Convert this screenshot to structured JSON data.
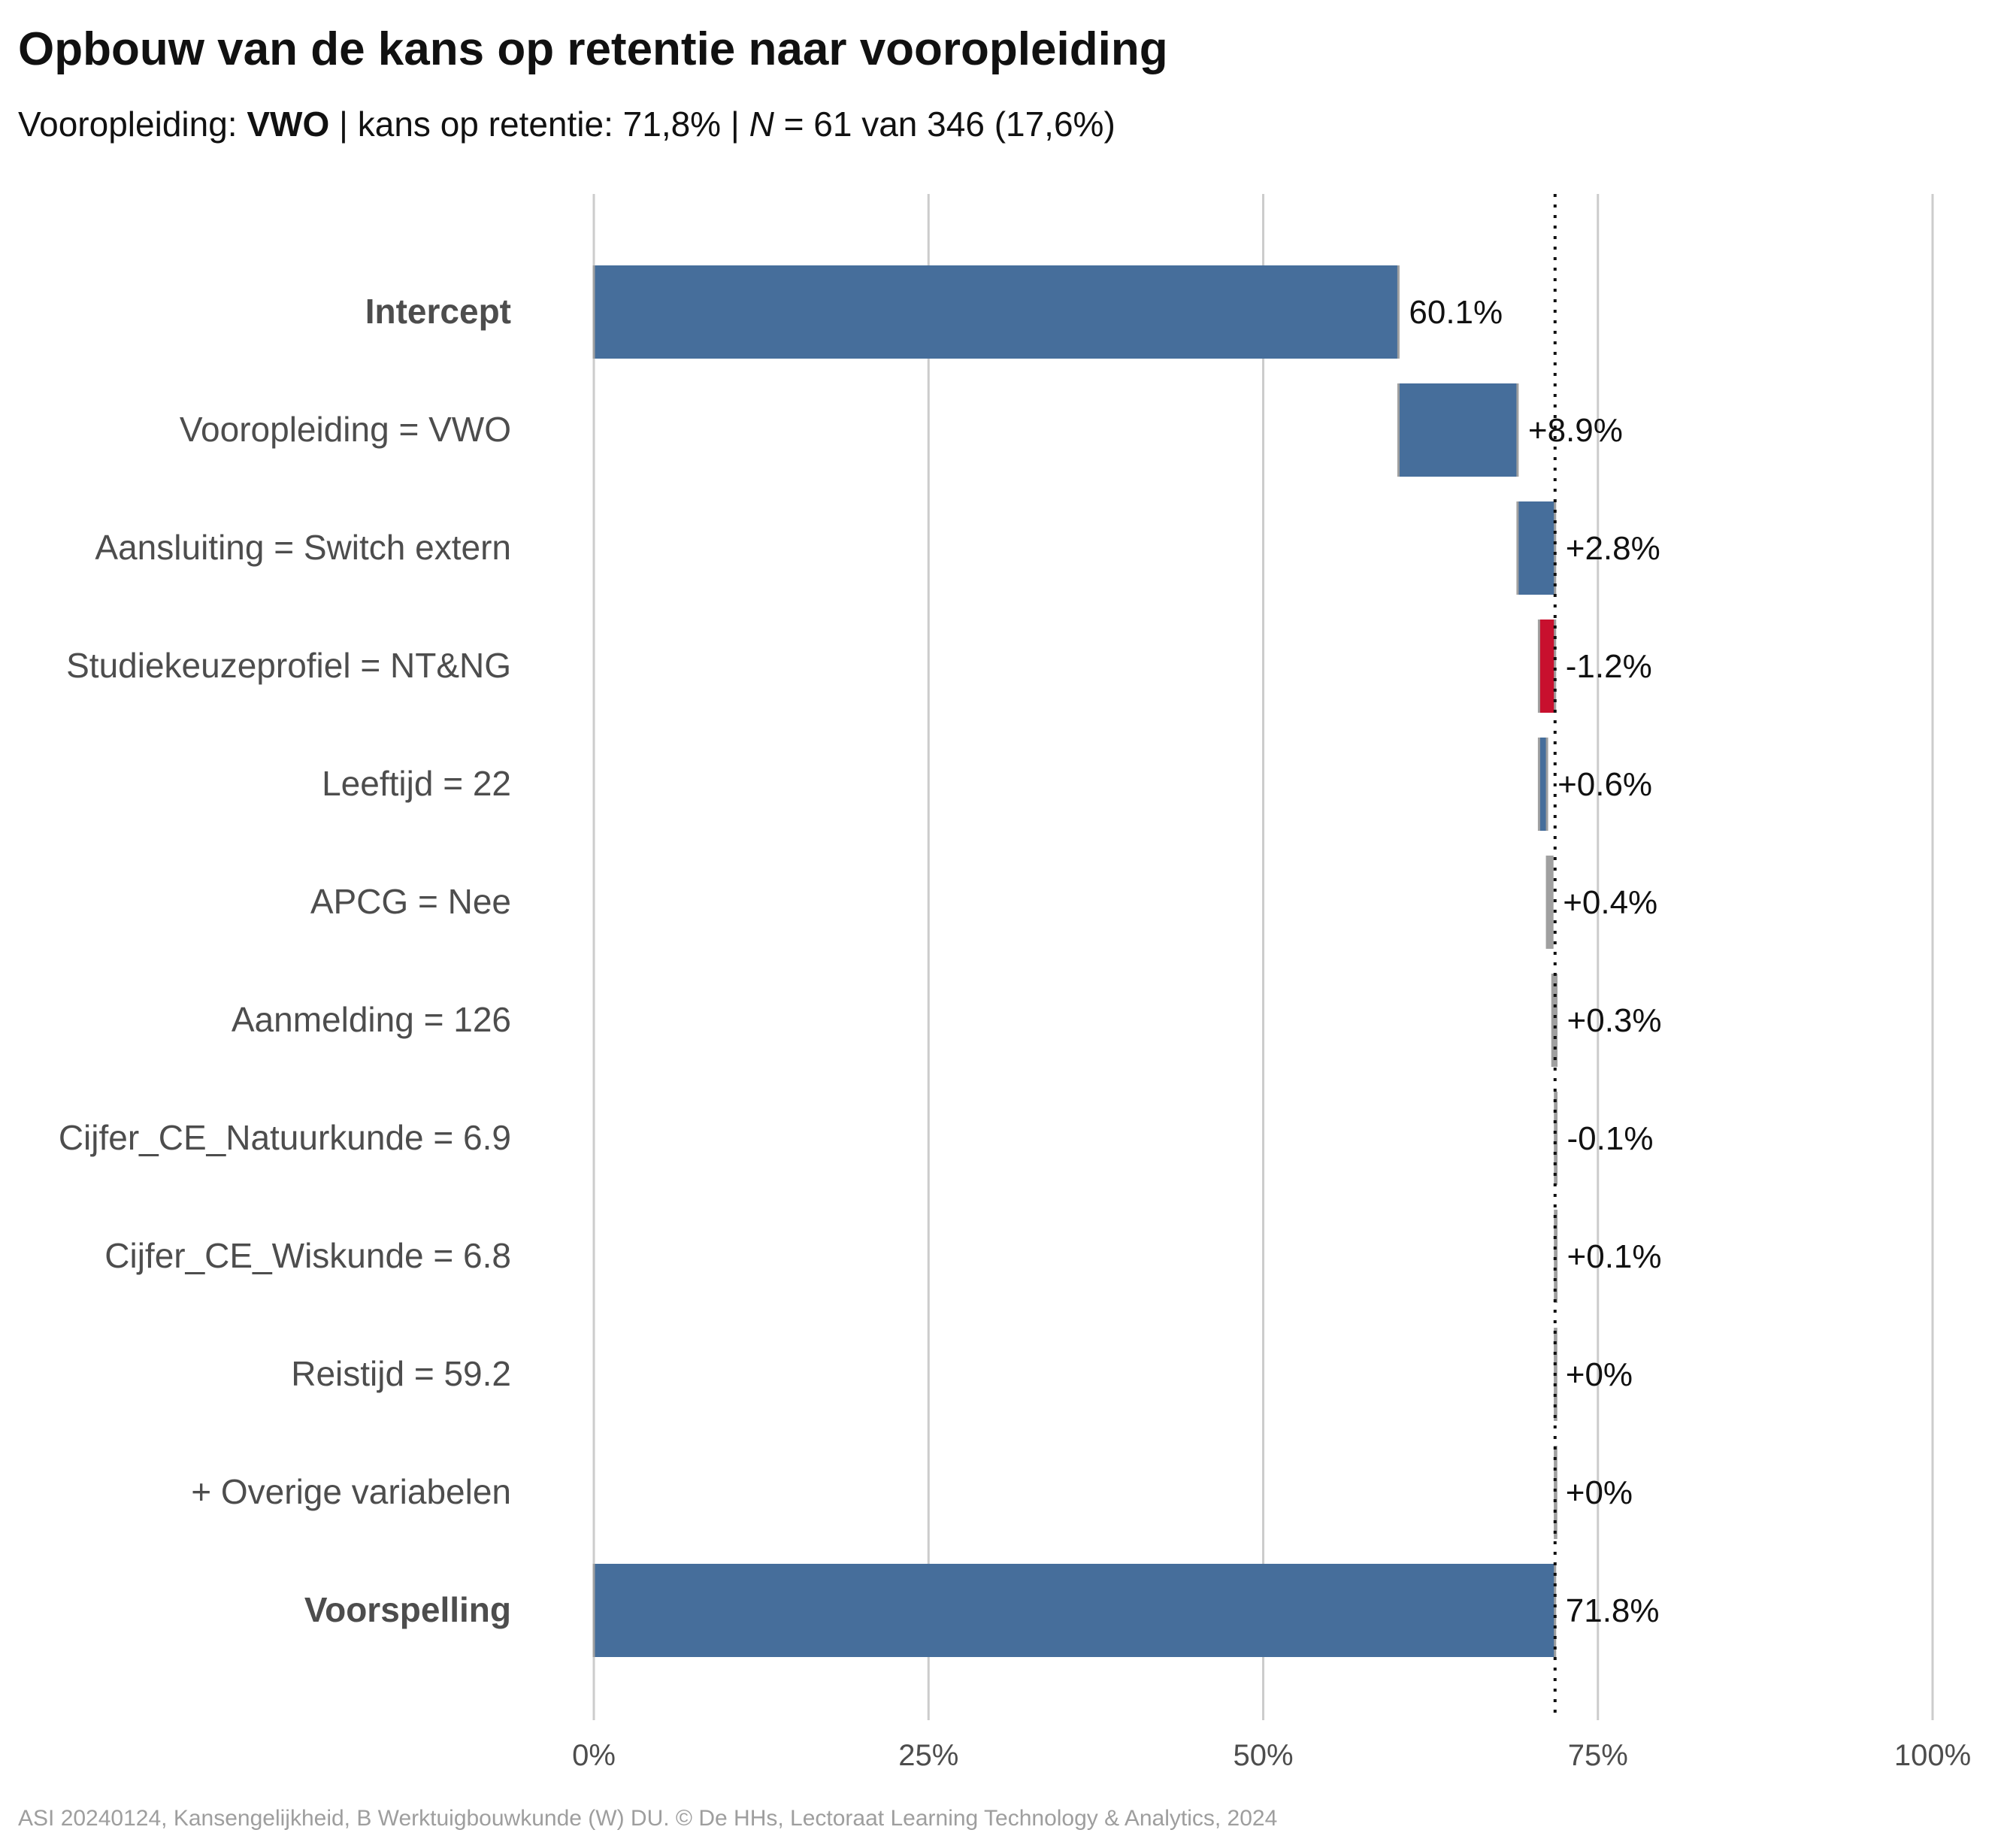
{
  "title": "Opbouw van de kans op retentie naar vooropleiding",
  "subtitle": {
    "prefix": "Vooropleiding: ",
    "group": "VWO",
    "sep1": " | kans op retentie: ",
    "kans": "71,8%",
    "sep2": " | ",
    "n_symbol": "N",
    "n_text": " = 61 van 346 (17,6%)"
  },
  "caption": "ASI 20240124, Kansengelijkheid, B Werktuigbouwkunde (W) DU. © De HHs, Lectoraat Learning Technology & Analytics, 2024",
  "colors": {
    "positive": "#466e9b",
    "negative": "#c8102e",
    "neutral": "#a0a0a0",
    "grid": "#cccccc",
    "label": "#4d4d4d",
    "value_text": "#111111"
  },
  "chart_data": {
    "type": "bar",
    "orientation": "horizontal-waterfall",
    "xlim": [
      0,
      100
    ],
    "x_ticks": [
      0,
      25,
      50,
      75,
      100
    ],
    "x_tick_labels": [
      "0%",
      "25%",
      "50%",
      "75%",
      "100%"
    ],
    "reference_line": 71.8,
    "grid": true,
    "rows": [
      {
        "label": "Intercept",
        "start": 0,
        "end": 60.1,
        "value_label": "60.1%",
        "kind": "total",
        "bold": true
      },
      {
        "label": "Vooropleiding = VWO",
        "start": 60.1,
        "end": 69.0,
        "value_label": "+8.9%",
        "kind": "positive"
      },
      {
        "label": "Aansluiting = Switch extern",
        "start": 69.0,
        "end": 71.8,
        "value_label": "+2.8%",
        "kind": "positive"
      },
      {
        "label": "Studiekeuzeprofiel = NT&NG",
        "start": 71.8,
        "end": 70.6,
        "value_label": "-1.2%",
        "kind": "negative"
      },
      {
        "label": "Leeftijd = 22",
        "start": 70.6,
        "end": 71.2,
        "value_label": "+0.6%",
        "kind": "positive"
      },
      {
        "label": "APCG = Nee",
        "start": 71.2,
        "end": 71.6,
        "value_label": "+0.4%",
        "kind": "small"
      },
      {
        "label": "Aanmelding = 126",
        "start": 71.6,
        "end": 71.9,
        "value_label": "+0.3%",
        "kind": "small"
      },
      {
        "label": "Cijfer_CE_Natuurkunde = 6.9",
        "start": 71.9,
        "end": 71.8,
        "value_label": "-0.1%",
        "kind": "small"
      },
      {
        "label": "Cijfer_CE_Wiskunde = 6.8",
        "start": 71.8,
        "end": 71.9,
        "value_label": "+0.1%",
        "kind": "small"
      },
      {
        "label": "Reistijd = 59.2",
        "start": 71.8,
        "end": 71.8,
        "value_label": "+0%",
        "kind": "small"
      },
      {
        "label": "+ Overige variabelen",
        "start": 71.8,
        "end": 71.8,
        "value_label": "+0%",
        "kind": "small"
      },
      {
        "label": "Voorspelling",
        "start": 0,
        "end": 71.8,
        "value_label": "71.8%",
        "kind": "total",
        "bold": true
      }
    ]
  }
}
